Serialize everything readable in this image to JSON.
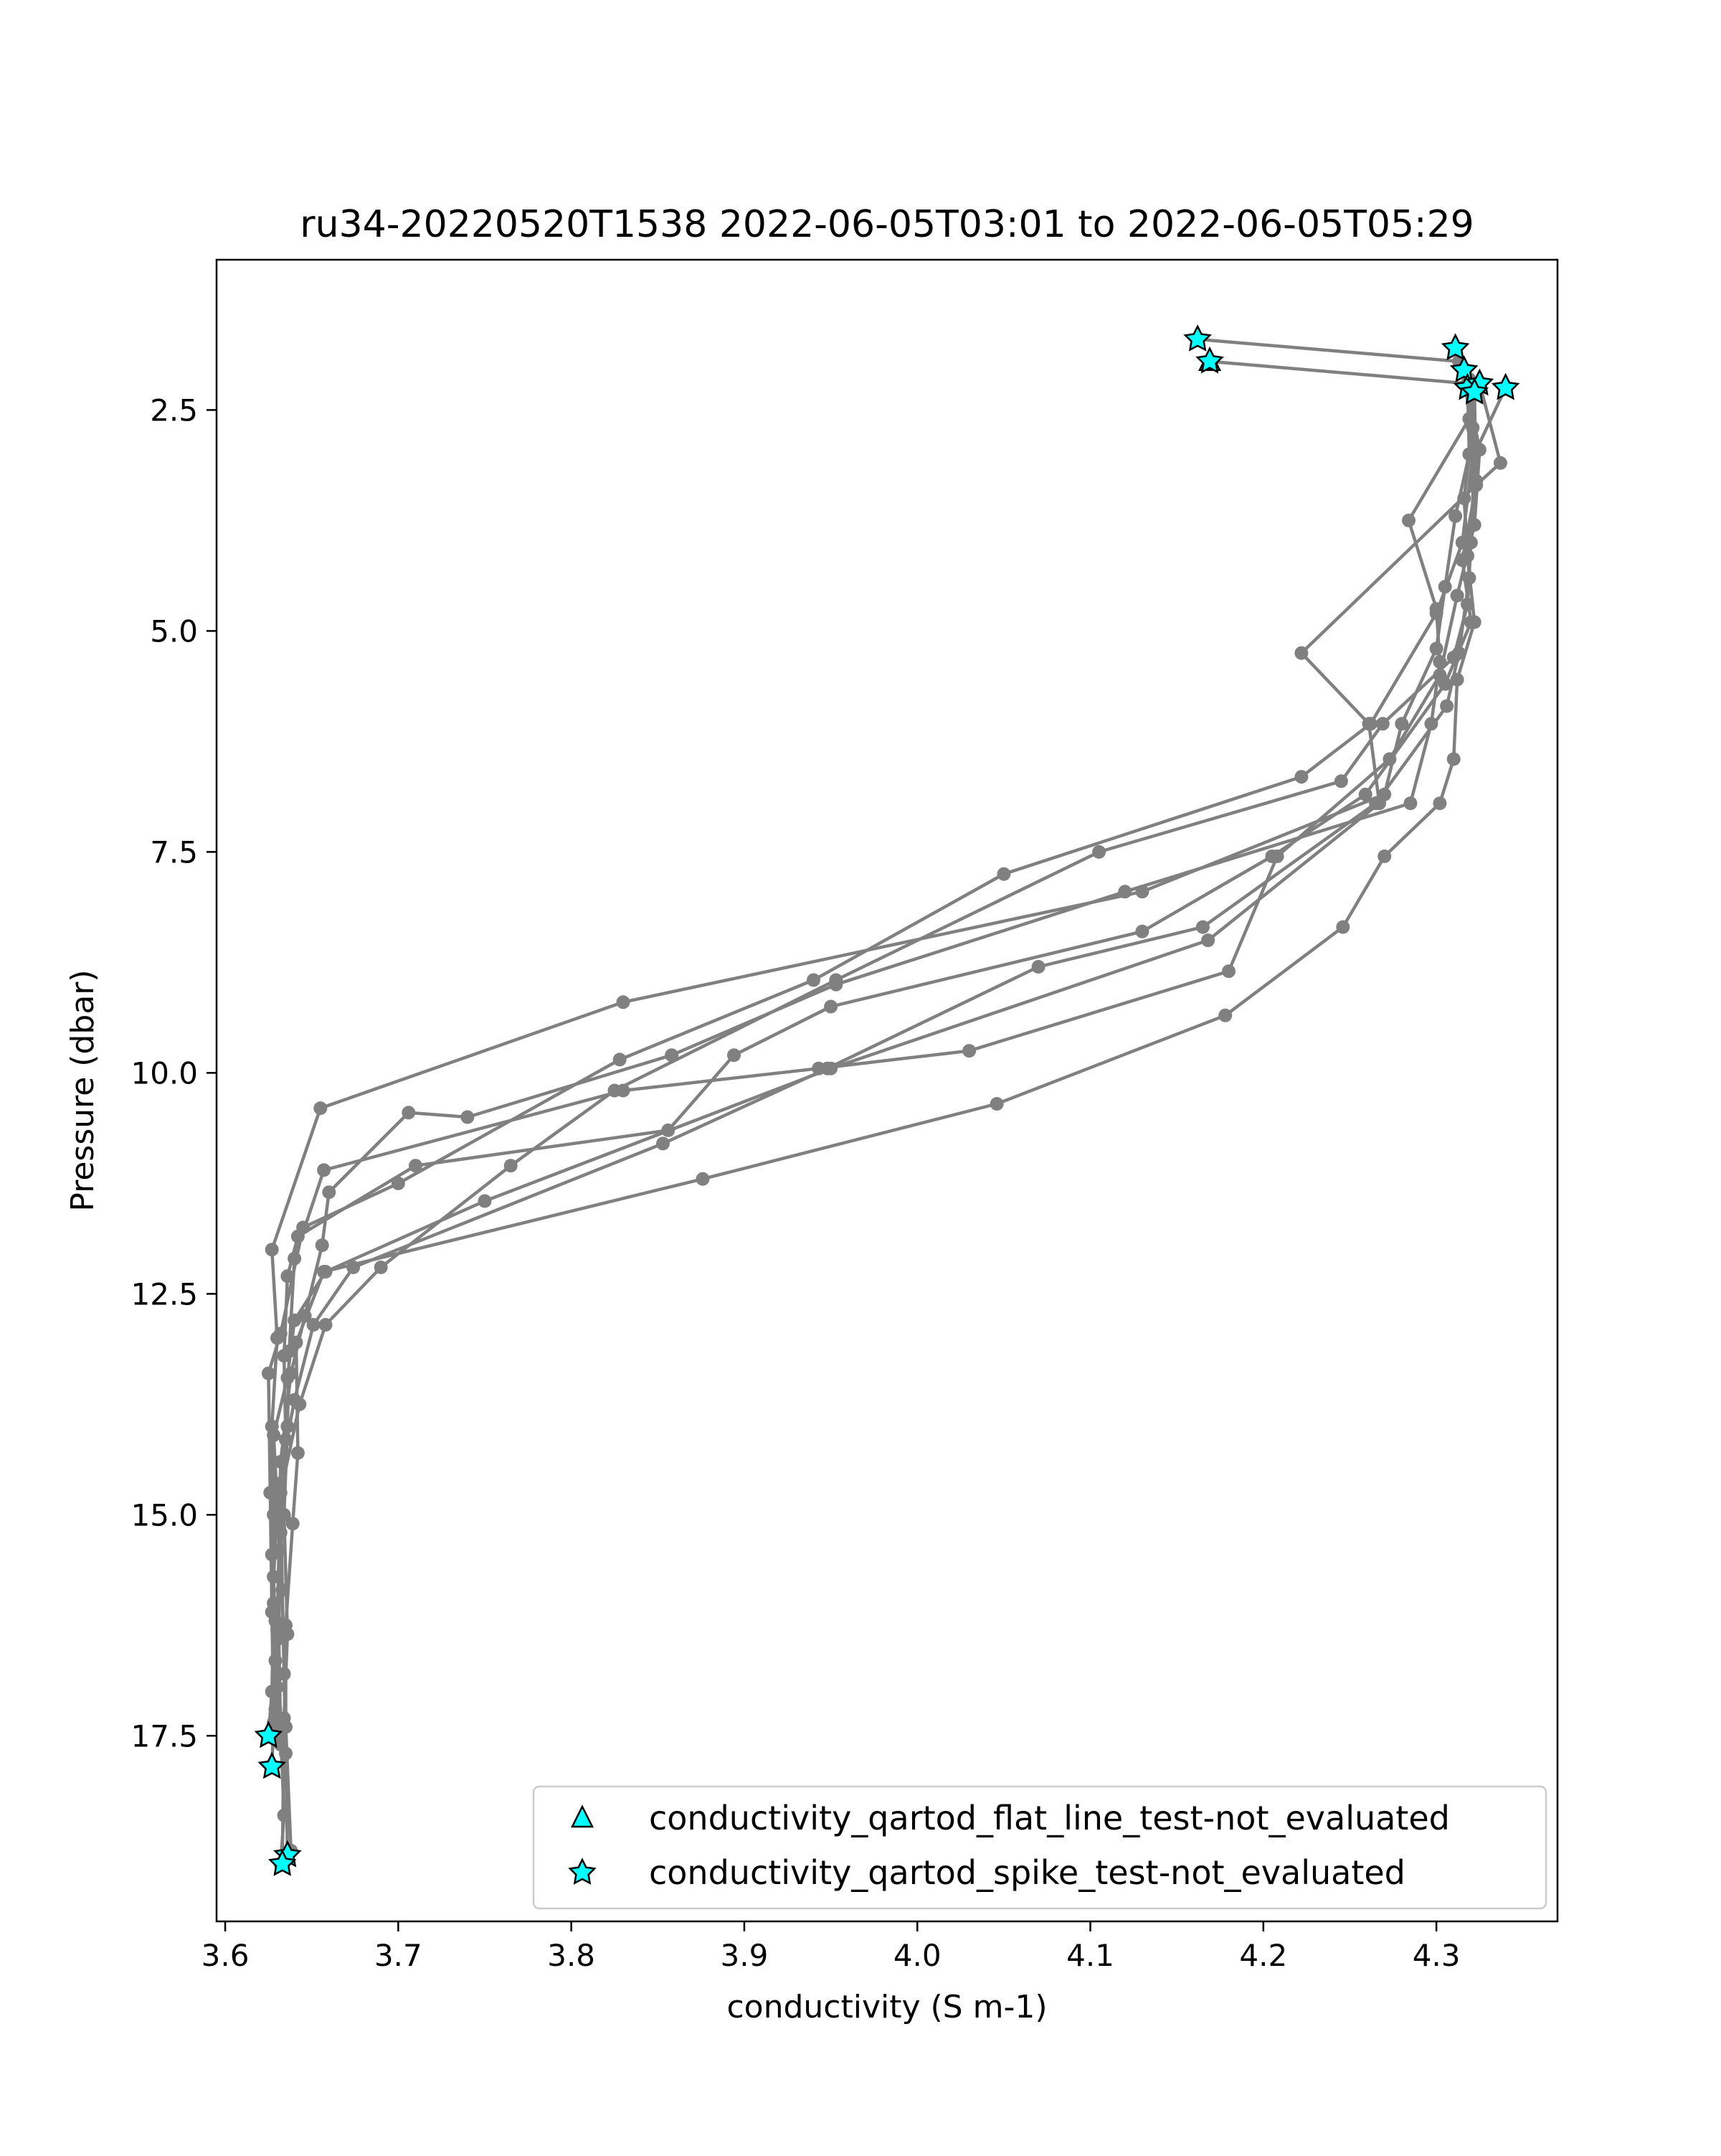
{
  "chart_data": {
    "type": "scatter",
    "title": "ru34-20220520T1538 2022-06-05T03:01 to 2022-06-05T05:29",
    "xlabel": "conductivity (S m-1)",
    "ylabel": "Pressure (dbar)",
    "xlim": [
      3.595,
      4.37
    ],
    "ylim": [
      19.6,
      0.8
    ],
    "y_inverted": true,
    "grid": false,
    "legend_position": "lower-right",
    "xticks": [
      3.6,
      3.7,
      3.8,
      3.9,
      4.0,
      4.1,
      4.2,
      4.3
    ],
    "xtick_labels": [
      "3.6",
      "3.7",
      "3.8",
      "3.9",
      "4.0",
      "4.1",
      "4.2",
      "4.3"
    ],
    "yticks": [
      2.5,
      5.0,
      7.5,
      10.0,
      12.5,
      15.0,
      17.5
    ],
    "ytick_labels": [
      "2.5",
      "5.0",
      "7.5",
      "10.0",
      "12.5",
      "15.0",
      "17.5"
    ],
    "line_color": "#808080",
    "marker_fill": "#00ffff",
    "marker_edge": "#000000",
    "series": [
      {
        "points": [
          [
            4.162,
            1.7
          ],
          [
            4.313,
            1.95
          ],
          [
            4.318,
            2.2
          ],
          [
            4.319,
            3.0
          ],
          [
            4.311,
            3.7
          ],
          [
            4.305,
            4.5
          ],
          [
            4.3,
            5.2
          ],
          [
            4.28,
            6.05
          ],
          [
            4.27,
            6.85
          ],
          [
            4.13,
            7.95
          ],
          [
            3.83,
            9.2
          ],
          [
            3.655,
            10.4
          ],
          [
            3.627,
            12.0
          ],
          [
            3.63,
            13.0
          ],
          [
            3.627,
            14.0
          ],
          [
            3.628,
            15.0
          ],
          [
            3.628,
            16.0
          ],
          [
            3.627,
            17.0
          ],
          [
            3.625,
            17.5
          ]
        ]
      },
      {
        "points": [
          [
            4.169,
            1.95
          ],
          [
            4.318,
            2.2
          ],
          [
            4.321,
            3.0
          ],
          [
            4.315,
            4.0
          ],
          [
            4.3,
            4.8
          ],
          [
            4.262,
            6.05
          ],
          [
            4.222,
            6.65
          ],
          [
            4.05,
            7.75
          ],
          [
            3.94,
            8.95
          ],
          [
            3.828,
            9.85
          ],
          [
            3.7,
            11.25
          ],
          [
            3.645,
            11.75
          ],
          [
            3.632,
            12.95
          ],
          [
            3.625,
            13.4
          ],
          [
            3.626,
            14.75
          ],
          [
            3.627,
            16.1
          ],
          [
            3.628,
            17.35
          ],
          [
            3.627,
            17.85
          ]
        ]
      },
      {
        "points": [
          [
            4.34,
            2.25
          ],
          [
            4.322,
            3.0
          ],
          [
            4.32,
            4.0
          ],
          [
            4.318,
            4.7
          ],
          [
            4.31,
            5.3
          ],
          [
            4.269,
            6.05
          ],
          [
            4.245,
            6.7
          ],
          [
            4.105,
            7.5
          ],
          [
            3.953,
            8.95
          ],
          [
            3.825,
            10.2
          ],
          [
            3.765,
            11.05
          ],
          [
            3.69,
            12.2
          ],
          [
            3.658,
            12.85
          ],
          [
            3.643,
            13.75
          ],
          [
            3.632,
            14.75
          ],
          [
            3.633,
            15.85
          ],
          [
            3.634,
            16.8
          ],
          [
            3.635,
            17.7
          ],
          [
            3.636,
            18.85
          ]
        ]
      },
      {
        "points": [
          [
            4.325,
            2.2
          ],
          [
            4.337,
            3.1
          ],
          [
            4.323,
            3.35
          ],
          [
            4.315,
            4.2
          ],
          [
            4.32,
            4.9
          ],
          [
            4.305,
            5.6
          ],
          [
            4.259,
            6.85
          ],
          [
            4.205,
            7.55
          ],
          [
            4.13,
            8.4
          ],
          [
            3.95,
            9.25
          ],
          [
            3.894,
            9.8
          ],
          [
            3.856,
            10.65
          ],
          [
            3.71,
            11.05
          ],
          [
            3.642,
            11.85
          ],
          [
            3.636,
            12.3
          ],
          [
            3.634,
            13.2
          ],
          [
            3.635,
            14.15
          ],
          [
            3.632,
            15.2
          ],
          [
            3.631,
            16.4
          ],
          [
            3.632,
            17.45
          ],
          [
            3.634,
            18.4
          ],
          [
            3.632,
            18.95
          ]
        ]
      },
      {
        "points": [
          [
            4.319,
            2.15
          ],
          [
            4.321,
            2.7
          ],
          [
            4.316,
            3.5
          ],
          [
            4.319,
            4.4
          ],
          [
            4.313,
            5.25
          ],
          [
            4.306,
            5.85
          ],
          [
            4.265,
            6.95
          ],
          [
            4.165,
            8.35
          ],
          [
            4.07,
            8.8
          ],
          [
            3.948,
            9.95
          ],
          [
            3.853,
            10.8
          ],
          [
            3.674,
            12.2
          ],
          [
            3.651,
            12.85
          ],
          [
            3.64,
            13.7
          ],
          [
            3.631,
            14.65
          ],
          [
            3.628,
            15.7
          ],
          [
            3.629,
            16.65
          ],
          [
            3.631,
            17.55
          ]
        ]
      },
      {
        "points": [
          [
            4.322,
            2.3
          ],
          [
            4.323,
            3.35
          ],
          [
            4.222,
            5.25
          ],
          [
            4.261,
            6.05
          ],
          [
            4.267,
            6.95
          ],
          [
            4.168,
            8.5
          ],
          [
            3.95,
            9.95
          ],
          [
            3.75,
            11.45
          ],
          [
            3.658,
            12.25
          ],
          [
            3.64,
            12.8
          ],
          [
            3.636,
            13.45
          ],
          [
            3.628,
            14.1
          ],
          [
            3.63,
            14.85
          ],
          [
            3.627,
            15.45
          ],
          [
            3.629,
            16.2
          ],
          [
            3.63,
            16.95
          ],
          [
            3.632,
            17.6
          ]
        ]
      },
      {
        "points": [
          [
            4.318,
            2.25
          ],
          [
            4.325,
            2.95
          ],
          [
            4.322,
            3.8
          ],
          [
            4.312,
            4.6
          ],
          [
            4.302,
            5.5
          ],
          [
            4.273,
            6.45
          ],
          [
            4.208,
            7.55
          ],
          [
            4.18,
            8.85
          ],
          [
            4.03,
            9.75
          ],
          [
            3.943,
            9.95
          ],
          [
            3.83,
            10.2
          ],
          [
            3.657,
            11.1
          ],
          [
            3.64,
            12.1
          ],
          [
            3.637,
            13.15
          ],
          [
            3.636,
            14.0
          ],
          [
            3.634,
            15.0
          ],
          [
            3.636,
            16.35
          ],
          [
            3.634,
            17.3
          ],
          [
            3.633,
            18.95
          ]
        ]
      },
      {
        "points": [
          [
            4.32,
            2.25
          ],
          [
            4.323,
            3.3
          ],
          [
            4.318,
            4.15
          ],
          [
            4.322,
            4.9
          ],
          [
            4.312,
            5.55
          ],
          [
            4.31,
            6.45
          ],
          [
            4.302,
            6.95
          ],
          [
            4.27,
            7.55
          ],
          [
            4.246,
            8.35
          ],
          [
            4.178,
            9.35
          ],
          [
            4.046,
            10.35
          ],
          [
            3.876,
            11.2
          ],
          [
            3.657,
            12.25
          ],
          [
            3.641,
            13.05
          ],
          [
            3.642,
            14.3
          ],
          [
            3.639,
            15.1
          ],
          [
            3.635,
            16.25
          ],
          [
            3.635,
            17.4
          ],
          [
            3.638,
            18.8
          ]
        ]
      },
      {
        "points": [
          [
            4.316,
            2.05
          ],
          [
            4.319,
            2.6
          ],
          [
            4.284,
            3.75
          ],
          [
            4.3,
            4.75
          ],
          [
            4.302,
            5.35
          ],
          [
            4.297,
            6.05
          ],
          [
            4.285,
            6.95
          ],
          [
            4.12,
            7.95
          ],
          [
            3.953,
            9.0
          ],
          [
            3.858,
            9.8
          ],
          [
            3.74,
            10.5
          ],
          [
            3.706,
            10.45
          ],
          [
            3.66,
            11.35
          ],
          [
            3.656,
            11.95
          ],
          [
            3.646,
            12.75
          ],
          [
            3.638,
            13.4
          ],
          [
            3.632,
            14.4
          ],
          [
            3.631,
            15.4
          ],
          [
            3.63,
            16.3
          ],
          [
            3.629,
            17.2
          ]
        ]
      }
    ],
    "flagged_points": {
      "flat_line_test": [
        [
          4.169,
          1.95
        ]
      ],
      "spike_test": [
        [
          4.162,
          1.7
        ],
        [
          4.169,
          1.95
        ],
        [
          4.311,
          1.8
        ],
        [
          4.316,
          2.05
        ],
        [
          4.318,
          2.25
        ],
        [
          4.325,
          2.2
        ],
        [
          4.34,
          2.25
        ],
        [
          4.322,
          2.3
        ],
        [
          3.625,
          17.5
        ],
        [
          3.627,
          17.85
        ],
        [
          3.636,
          18.85
        ],
        [
          3.633,
          18.95
        ]
      ]
    },
    "legend": [
      "conductivity_qartod_flat_line_test-not_evaluated",
      "conductivity_qartod_spike_test-not_evaluated"
    ]
  }
}
